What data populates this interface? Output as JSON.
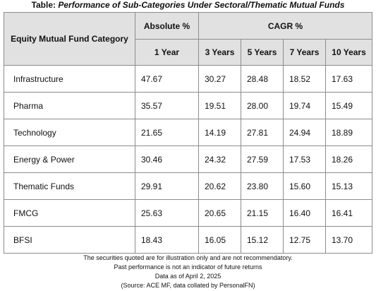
{
  "title": {
    "prefix": "Table: ",
    "main": "Performance of Sub-Categories Under Sectoral/Thematic Mutual Funds"
  },
  "table": {
    "headers": {
      "category": "Equity Mutual Fund Category",
      "absolute": "Absolute %",
      "cagr": "CAGR %",
      "periods": [
        "1 Year",
        "3 Years",
        "5 Years",
        "7 Years",
        "10 Years"
      ]
    },
    "rows": [
      {
        "category": "Infrastructure",
        "values": [
          "47.67",
          "30.27",
          "28.48",
          "18.52",
          "17.63"
        ]
      },
      {
        "category": "Pharma",
        "values": [
          "35.57",
          "19.51",
          "28.00",
          "19.74",
          "15.49"
        ]
      },
      {
        "category": "Technology",
        "values": [
          "21.65",
          "14.19",
          "27.81",
          "24.94",
          "18.89"
        ]
      },
      {
        "category": "Energy & Power",
        "values": [
          "30.46",
          "24.32",
          "27.59",
          "17.53",
          "18.26"
        ]
      },
      {
        "category": "Thematic Funds",
        "values": [
          "29.91",
          "20.62",
          "23.80",
          "15.60",
          "15.13"
        ]
      },
      {
        "category": "FMCG",
        "values": [
          "25.63",
          "20.65",
          "21.15",
          "16.40",
          "16.41"
        ]
      },
      {
        "category": "BFSI",
        "values": [
          "18.43",
          "16.05",
          "15.12",
          "12.75",
          "13.70"
        ]
      }
    ]
  },
  "footnotes": [
    "The securities quoted are for illustration only and are not recommendatory.",
    "Past performance is not an indicator of future returns",
    "Data as of April 2, 2025",
    "(Source: ACE MF, data collated by PersonalFN)"
  ],
  "colors": {
    "header_bg": "#e1e1e1",
    "border": "#8c8c8c",
    "text": "#111111"
  }
}
